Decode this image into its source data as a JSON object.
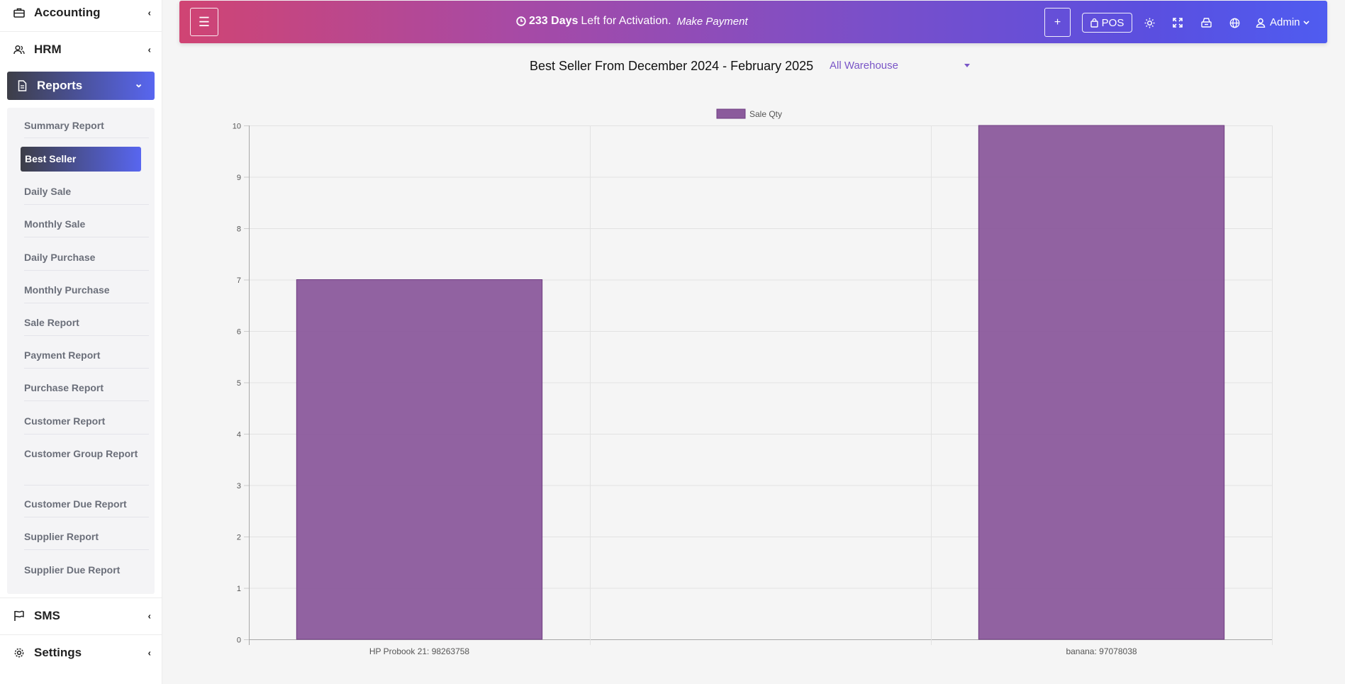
{
  "sidebar": {
    "items": [
      {
        "label": "Accounting",
        "icon": "briefcase-icon",
        "chevron": "‹"
      },
      {
        "label": "HRM",
        "icon": "users-icon",
        "chevron": "‹"
      },
      {
        "label": "Reports",
        "icon": "document-icon",
        "chevron": "⌄"
      },
      {
        "label": "SMS",
        "icon": "flag-icon",
        "chevron": "‹"
      },
      {
        "label": "Settings",
        "icon": "gear-icon",
        "chevron": "‹"
      }
    ],
    "reports_submenu": [
      "Summary Report",
      "Best Seller",
      "Daily Sale",
      "Monthly Sale",
      "Daily Purchase",
      "Monthly Purchase",
      "Sale Report",
      "Payment Report",
      "Purchase Report",
      "Customer Report",
      "Customer Group Report",
      "Customer Due Report",
      "Supplier Report",
      "Supplier Due Report"
    ]
  },
  "topbar": {
    "menu_icon": "☰",
    "activation_days": "233 Days",
    "activation_text": "Left for Activation.",
    "make_payment": "Make Payment",
    "plus": "+",
    "pos_label": "POS",
    "user_label": "Admin",
    "colors": {
      "start": "#d04473",
      "end": "#4f5cf0"
    }
  },
  "page": {
    "title": "Best Seller From December 2024 - February 2025",
    "warehouse_selected": "All Warehouse"
  },
  "chart_data": {
    "type": "bar",
    "categories": [
      "HP Probook 21: 98263758",
      "",
      "banana: 97078038"
    ],
    "series": [
      {
        "name": "Sale Qty",
        "values": [
          7,
          0,
          10
        ],
        "color": "#8b5a9c"
      }
    ],
    "ylim": [
      0,
      10
    ],
    "yticks": [
      0,
      1,
      2,
      3,
      4,
      5,
      6,
      7,
      8,
      9,
      10
    ],
    "grid": true,
    "legend": "top"
  }
}
